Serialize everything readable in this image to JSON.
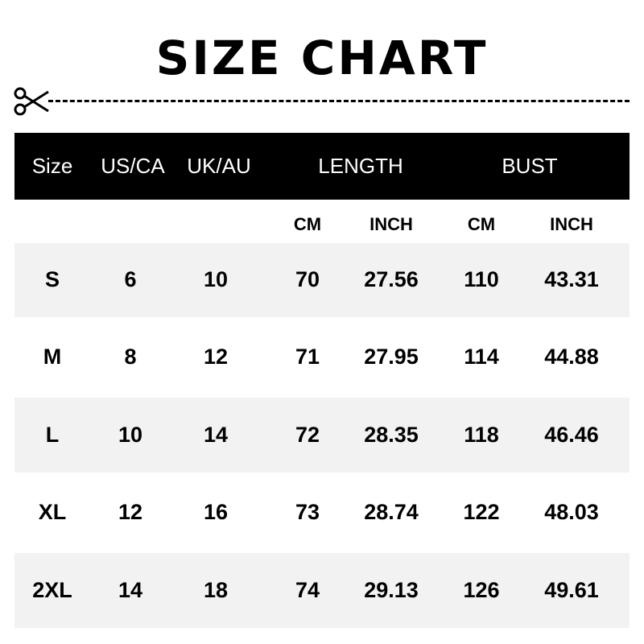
{
  "title": "SIZE CHART",
  "icons": {
    "cut": "scissors-icon"
  },
  "colors": {
    "header_bg": "#000000",
    "stripe": "#f2f2f2"
  },
  "header": [
    "Size",
    "US/CA",
    "UK/AU",
    "LENGTH",
    "BUST"
  ],
  "subheader": [
    "CM",
    "INCH",
    "CM",
    "INCH"
  ],
  "rows": [
    [
      "S",
      "6",
      "10",
      "70",
      "27.56",
      "110",
      "43.31"
    ],
    [
      "M",
      "8",
      "12",
      "71",
      "27.95",
      "114",
      "44.88"
    ],
    [
      "L",
      "10",
      "14",
      "72",
      "28.35",
      "118",
      "46.46"
    ],
    [
      "XL",
      "12",
      "16",
      "73",
      "28.74",
      "122",
      "48.03"
    ],
    [
      "2XL",
      "14",
      "18",
      "74",
      "29.13",
      "126",
      "49.61"
    ]
  ]
}
